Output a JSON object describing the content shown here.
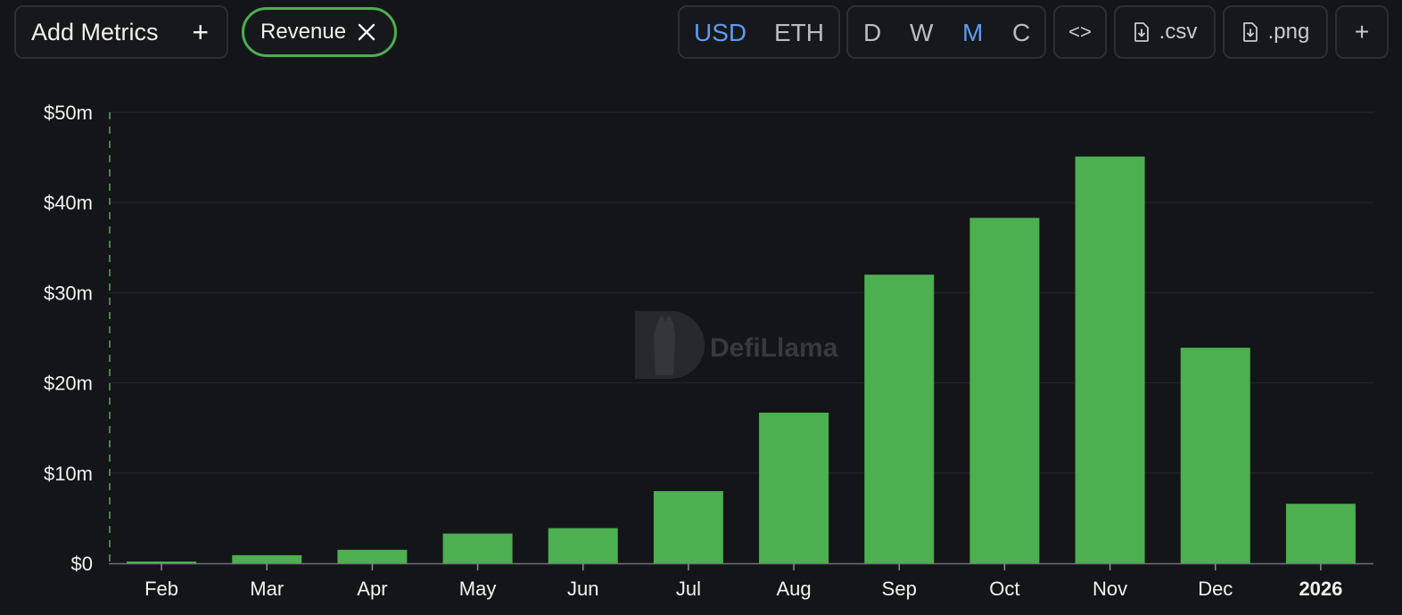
{
  "toolbar": {
    "add_metrics_label": "Add Metrics",
    "add_metrics_icon": "plus-icon",
    "chip_label": "Revenue",
    "chip_color": "#4caf50",
    "currency": {
      "options": [
        "USD",
        "ETH"
      ],
      "selected": "USD"
    },
    "granularity": {
      "options": [
        "D",
        "W",
        "M",
        "C"
      ],
      "selected": "M"
    },
    "embed_label": "<>",
    "csv_label": ".csv",
    "png_label": ".png",
    "more_label": "+"
  },
  "watermark": {
    "text": "DefiLlama"
  },
  "chart_data": {
    "type": "bar",
    "title": "",
    "xlabel": "",
    "ylabel": "",
    "categories": [
      "Feb",
      "Mar",
      "Apr",
      "May",
      "Jun",
      "Jul",
      "Aug",
      "Sep",
      "Oct",
      "Nov",
      "Dec",
      "2026"
    ],
    "series": [
      {
        "values": [
          0.2,
          0.9,
          1.5,
          3.3,
          3.9,
          8.0,
          16.7,
          32.0,
          38.3,
          45.1,
          23.9,
          6.6
        ],
        "color": "#4caf50"
      }
    ],
    "value_unit": "USD millions",
    "ylim": [
      0,
      50
    ],
    "yticks": [
      0,
      10,
      20,
      30,
      40,
      50
    ],
    "ytick_labels": [
      "$0",
      "$10m",
      "$20m",
      "$30m",
      "$40m",
      "$50m"
    ],
    "grid": true,
    "legend": "none"
  }
}
